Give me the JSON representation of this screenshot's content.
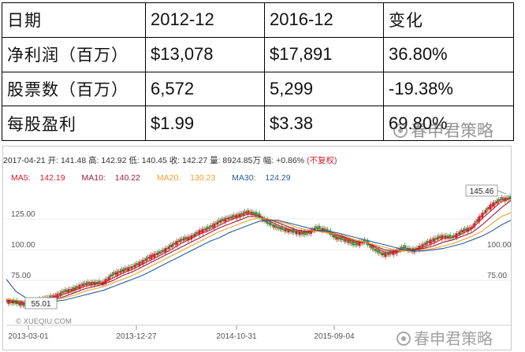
{
  "table": {
    "header": [
      "日期",
      "2012-12",
      "2016-12",
      "变化"
    ],
    "rows": [
      [
        "净利润（百万）",
        "$13,078",
        "$17,891",
        "36.80%"
      ],
      [
        "股票数（百万）",
        "6,572",
        "5,299",
        "-19.38%"
      ],
      [
        "每股盈利",
        "$1.99",
        "$3.38",
        "69.80%"
      ]
    ]
  },
  "watermark": "春申君策略",
  "chart": {
    "info_text": "2017-04-21 开: 141.48 高: 142.92 低: 140.45 收: 142.27 量: 8924.85万 幅: +0.86%",
    "adjust_label": "(不复权)",
    "ma_labels": [
      {
        "label": "MA5:",
        "value": "142.19",
        "color": "#d2202e"
      },
      {
        "label": "MA10:",
        "value": "140.22",
        "color": "#9b1f36"
      },
      {
        "label": "MA20:",
        "value": "130.23",
        "color": "#f0a030"
      },
      {
        "label": "MA30:",
        "value": "124.29",
        "color": "#2c5d9a"
      }
    ],
    "source": "© XUEQIU.COM"
  },
  "chart_data": {
    "type": "line",
    "y_ticks_left": [
      "125.00",
      "100.00",
      "75.00"
    ],
    "y_ticks_right": [
      "100.00",
      "75.00"
    ],
    "x_ticks": [
      "2013-03-01",
      "2013-12-27",
      "2014-10-31",
      "2015-09-04"
    ],
    "annotations": {
      "max": "145.46",
      "min": "55.01"
    },
    "ylim": [
      45,
      152
    ],
    "series": [
      {
        "name": "K",
        "color": "#d2202e",
        "values": [
          58,
          57,
          55,
          58,
          60,
          62,
          66,
          68,
          72,
          73,
          73,
          80,
          83,
          86,
          90,
          95,
          98,
          103,
          108,
          110,
          115,
          118,
          123,
          126,
          128,
          131,
          128,
          122,
          118,
          116,
          114,
          113,
          118,
          116,
          110,
          108,
          104,
          107,
          100,
          96,
          98,
          102,
          99,
          104,
          108,
          111,
          110,
          115,
          118,
          128,
          136,
          141,
          142
        ]
      },
      {
        "name": "MA5",
        "color": "#d2202e",
        "values": [
          58,
          57,
          56,
          57,
          59,
          61,
          64,
          67,
          70,
          72,
          73,
          77,
          81,
          84,
          88,
          92,
          96,
          100,
          105,
          109,
          113,
          116,
          120,
          124,
          127,
          129,
          128,
          124,
          120,
          117,
          115,
          114,
          116,
          115,
          112,
          109,
          106,
          106,
          102,
          98,
          98,
          100,
          100,
          102,
          105,
          109,
          110,
          113,
          117,
          125,
          132,
          139,
          142
        ]
      },
      {
        "name": "MA10",
        "color": "#9b1f36",
        "values": [
          59,
          58,
          57,
          57,
          58,
          60,
          62,
          65,
          68,
          70,
          72,
          75,
          79,
          82,
          86,
          90,
          94,
          98,
          102,
          106,
          110,
          114,
          118,
          121,
          124,
          127,
          127,
          125,
          122,
          119,
          116,
          115,
          115,
          115,
          113,
          110,
          107,
          106,
          103,
          100,
          99,
          99,
          100,
          101,
          103,
          106,
          108,
          111,
          114,
          120,
          127,
          134,
          140
        ]
      },
      {
        "name": "MA20",
        "color": "#f0a030",
        "values": [
          60,
          59,
          58,
          58,
          58,
          59,
          61,
          63,
          66,
          68,
          70,
          73,
          76,
          79,
          83,
          87,
          91,
          95,
          99,
          103,
          107,
          111,
          115,
          118,
          121,
          124,
          126,
          125,
          123,
          121,
          118,
          116,
          115,
          114,
          113,
          111,
          108,
          106,
          104,
          102,
          100,
          99,
          99,
          100,
          101,
          103,
          105,
          108,
          111,
          115,
          121,
          127,
          130
        ]
      },
      {
        "name": "MA30",
        "color": "#2c5d9a",
        "values": [
          76,
          66,
          61,
          59,
          58,
          58,
          59,
          61,
          63,
          65,
          67,
          70,
          73,
          76,
          79,
          83,
          87,
          91,
          95,
          99,
          103,
          107,
          110,
          114,
          117,
          120,
          123,
          124,
          124,
          122,
          120,
          118,
          116,
          115,
          114,
          112,
          110,
          108,
          106,
          104,
          102,
          100,
          99,
          99,
          100,
          101,
          103,
          105,
          108,
          111,
          115,
          120,
          124
        ]
      }
    ]
  }
}
